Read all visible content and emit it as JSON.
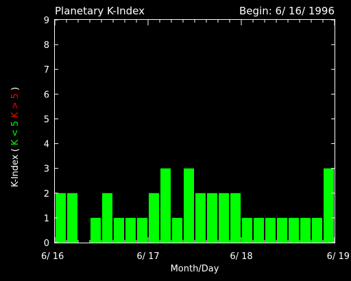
{
  "chart_data": {
    "type": "bar",
    "title": "Planetary K-Index",
    "subtitle": "Begin: 6/ 16/ 1996",
    "xlabel": "Month/Day",
    "ylabel_parts": [
      {
        "text": "K-Index",
        "color": "#ffffff"
      },
      {
        "text": "(",
        "color": "#ffffff"
      },
      {
        "text": "K < 5",
        "color": "#00ff00"
      },
      {
        "text": "K > 5",
        "color": "#ff0000"
      },
      {
        "text": ")",
        "color": "#ffffff"
      }
    ],
    "ylim": [
      0,
      9
    ],
    "yticks": [
      0,
      1,
      2,
      3,
      4,
      5,
      6,
      7,
      8,
      9
    ],
    "xlim": [
      0,
      24
    ],
    "xtick_labels": [
      {
        "pos": 0,
        "label": "6/ 16"
      },
      {
        "pos": 8,
        "label": "6/ 17"
      },
      {
        "pos": 16,
        "label": "6/ 18"
      },
      {
        "pos": 24,
        "label": "6/ 19"
      }
    ],
    "values": [
      2,
      2,
      0,
      1,
      2,
      1,
      1,
      1,
      2,
      3,
      1,
      3,
      2,
      2,
      2,
      2,
      1,
      1,
      1,
      1,
      1,
      1,
      1,
      3
    ],
    "bar_color": "#00ff00",
    "high_color": "#ff0000",
    "threshold": 5
  }
}
